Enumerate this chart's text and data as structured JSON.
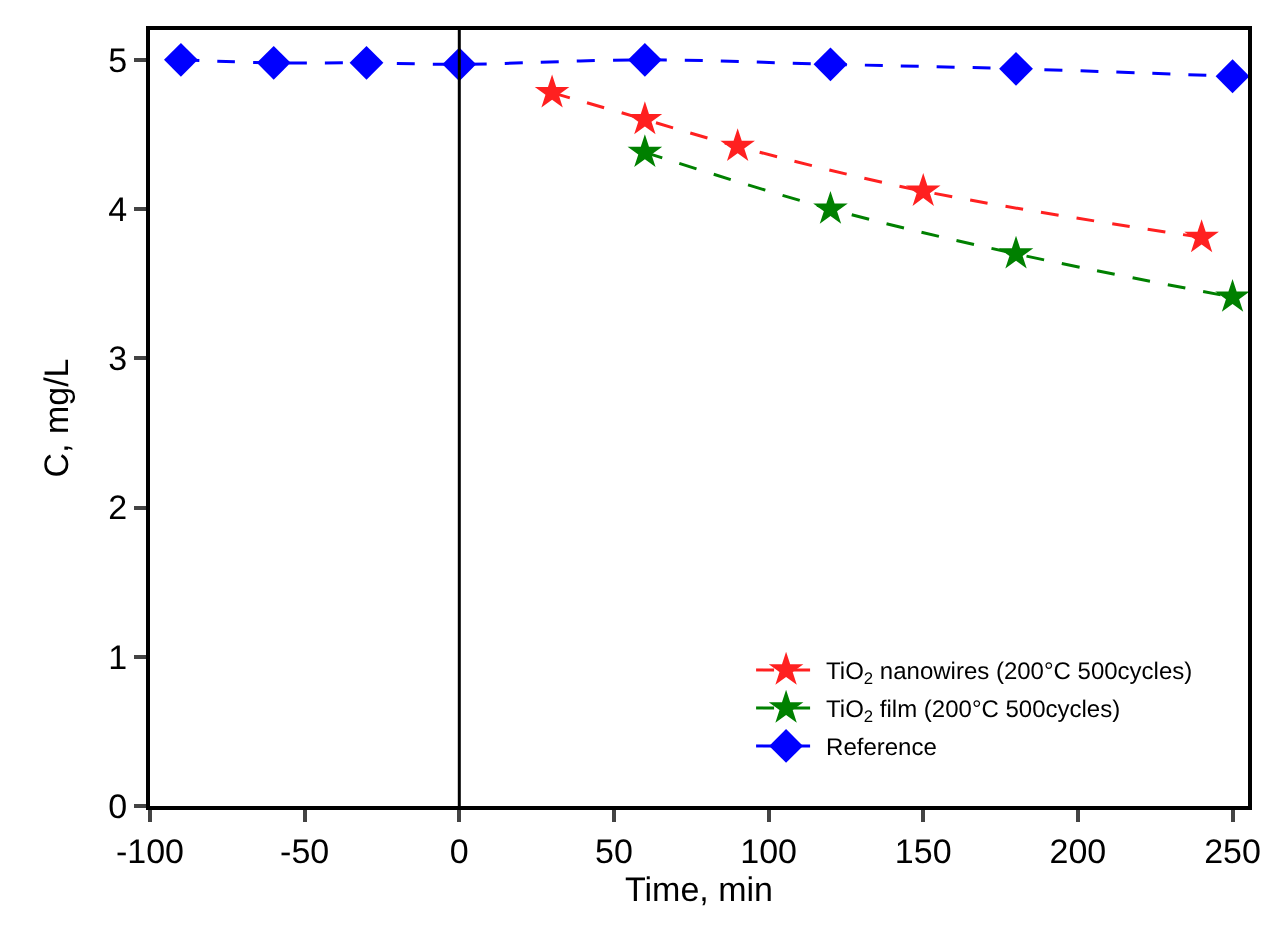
{
  "chart_data": {
    "type": "line",
    "xlabel": "Time, min",
    "ylabel": "C, mg/L",
    "xlim": [
      -100,
      255
    ],
    "xticks": [
      -100,
      -50,
      0,
      50,
      100,
      150,
      200,
      250
    ],
    "ylim": [
      0,
      5.2
    ],
    "yticks": [
      0,
      1,
      2,
      3,
      4,
      5
    ],
    "legend": "bottom right",
    "line_style": "dashed",
    "ref_lines": [
      {
        "axis": "x",
        "value": 0,
        "color": "#000000",
        "line_style": "solid"
      }
    ],
    "series": [
      {
        "name": "TiO$_{2}$ nanowires (200°C 500cycles)",
        "color": "#ff2020",
        "marker": "star",
        "x": [
          30,
          60,
          90,
          150,
          240
        ],
        "values": [
          4.78,
          4.6,
          4.42,
          4.12,
          3.81
        ]
      },
      {
        "name": "TiO$_{2}$ film (200°C 500cycles)",
        "color": "#008000",
        "marker": "star",
        "x": [
          60,
          120,
          180,
          250
        ],
        "values": [
          4.38,
          4.0,
          3.7,
          3.41
        ]
      },
      {
        "name": "Reference",
        "color": "#0000ff",
        "marker": "diamond",
        "x": [
          -90,
          -60,
          -30,
          0,
          60,
          120,
          180,
          250
        ],
        "values": [
          5.0,
          4.98,
          4.98,
          4.97,
          5.0,
          4.97,
          4.94,
          4.89
        ]
      }
    ]
  }
}
